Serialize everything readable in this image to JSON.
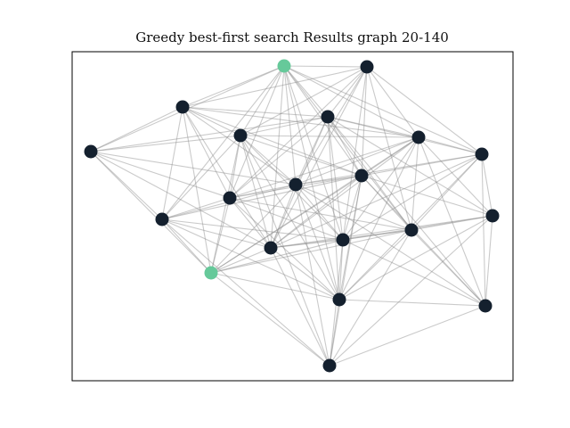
{
  "title": "Greedy best-first search Results graph 20-140",
  "colors": {
    "node_default": "#14202e",
    "node_highlight": "#66c99a",
    "edge": "#8a8a8a",
    "frame": "#000000"
  },
  "graph": {
    "nodes": [
      {
        "id": "n0",
        "highlight": true
      },
      {
        "id": "n1",
        "highlight": false
      },
      {
        "id": "n2",
        "highlight": false
      },
      {
        "id": "n3",
        "highlight": false
      },
      {
        "id": "n4",
        "highlight": false
      },
      {
        "id": "n5",
        "highlight": false
      },
      {
        "id": "n6",
        "highlight": false
      },
      {
        "id": "n7",
        "highlight": false
      },
      {
        "id": "n8",
        "highlight": false
      },
      {
        "id": "n9",
        "highlight": false
      },
      {
        "id": "n10",
        "highlight": false
      },
      {
        "id": "n11",
        "highlight": false
      },
      {
        "id": "n12",
        "highlight": false
      },
      {
        "id": "n13",
        "highlight": false
      },
      {
        "id": "n14",
        "highlight": false
      },
      {
        "id": "n15",
        "highlight": false
      },
      {
        "id": "n16",
        "highlight": true
      },
      {
        "id": "n17",
        "highlight": false
      },
      {
        "id": "n18",
        "highlight": false
      },
      {
        "id": "n19",
        "highlight": false
      }
    ],
    "edge_count": 140
  }
}
